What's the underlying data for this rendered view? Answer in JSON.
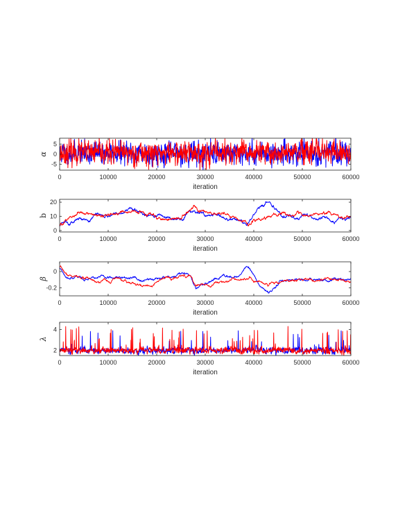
{
  "chart_data": [
    {
      "type": "line",
      "ylabel": "α",
      "xlabel": "iteration",
      "xlim": [
        0,
        60000
      ],
      "ylim": [
        -8,
        8
      ],
      "xticks": [
        0,
        10000,
        20000,
        30000,
        40000,
        50000,
        60000
      ],
      "yticks": [
        5,
        0,
        -5
      ],
      "ytick_labels": [
        "5",
        "0",
        "-5"
      ],
      "grid": false,
      "series": [
        {
          "color": "#0000ff",
          "mean": 0.5,
          "noise": 2.8,
          "persistence": 0.3,
          "x_end": 60000,
          "seed": 11
        },
        {
          "color": "#ff0000",
          "mean": 0.6,
          "noise": 2.9,
          "persistence": 0.3,
          "x_end": 60000,
          "seed": 23
        }
      ]
    },
    {
      "type": "line",
      "ylabel": "b",
      "xlabel": "iteration",
      "xlim": [
        0,
        60000
      ],
      "ylim": [
        -1,
        22
      ],
      "xticks": [
        0,
        10000,
        20000,
        30000,
        40000,
        50000,
        60000
      ],
      "yticks": [
        20,
        10,
        0
      ],
      "ytick_labels": [
        "20",
        "10",
        "0"
      ],
      "grid": false,
      "series": [
        {
          "color": "#0000ff",
          "mean": 10,
          "noise": 3,
          "persistence": 0.97,
          "x_end": 60000,
          "seed": 5,
          "anchors": [
            [
              0,
              3
            ],
            [
              1500,
              8
            ],
            [
              5000,
              10
            ],
            [
              12000,
              14
            ],
            [
              17000,
              14
            ],
            [
              20000,
              9
            ],
            [
              25000,
              8
            ],
            [
              27500,
              17
            ],
            [
              30000,
              12
            ],
            [
              35000,
              9
            ],
            [
              38500,
              3
            ],
            [
              40000,
              8
            ],
            [
              43000,
              19
            ],
            [
              46000,
              10
            ],
            [
              50000,
              9
            ],
            [
              55000,
              7
            ],
            [
              60000,
              8
            ]
          ]
        },
        {
          "color": "#ff0000",
          "mean": 10,
          "noise": 3,
          "persistence": 0.97,
          "x_end": 60000,
          "seed": 9,
          "anchors": [
            [
              0,
              3
            ],
            [
              1500,
              8
            ],
            [
              5000,
              10
            ],
            [
              12000,
              12
            ],
            [
              17000,
              14
            ],
            [
              20000,
              10
            ],
            [
              25000,
              8
            ],
            [
              27500,
              17
            ],
            [
              30000,
              12
            ],
            [
              35000,
              9
            ],
            [
              38500,
              5
            ],
            [
              40000,
              9
            ],
            [
              43000,
              13
            ],
            [
              46000,
              11
            ],
            [
              50000,
              11
            ],
            [
              55000,
              12
            ],
            [
              60000,
              10
            ]
          ]
        }
      ]
    },
    {
      "type": "line",
      "ylabel": "β",
      "xlabel": "iteration",
      "xlim": [
        0,
        60000
      ],
      "ylim": [
        -0.3,
        0.12
      ],
      "xticks": [
        0,
        10000,
        20000,
        30000,
        40000,
        50000,
        60000
      ],
      "yticks": [
        0,
        -0.2
      ],
      "ytick_labels": [
        "0",
        "-0.2"
      ],
      "grid": false,
      "series": [
        {
          "color": "#0000ff",
          "mean": -0.1,
          "noise": 0.04,
          "persistence": 0.97,
          "x_end": 60000,
          "seed": 3,
          "anchors": [
            [
              0,
              0.05
            ],
            [
              1500,
              -0.05
            ],
            [
              5000,
              -0.1
            ],
            [
              12000,
              -0.06
            ],
            [
              17000,
              -0.12
            ],
            [
              22000,
              -0.08
            ],
            [
              27000,
              -0.05
            ],
            [
              28000,
              -0.2
            ],
            [
              32000,
              -0.1
            ],
            [
              37000,
              -0.05
            ],
            [
              38500,
              0.05
            ],
            [
              40000,
              -0.08
            ],
            [
              43000,
              -0.25
            ],
            [
              46000,
              -0.1
            ],
            [
              50000,
              -0.12
            ],
            [
              55000,
              -0.08
            ],
            [
              60000,
              -0.1
            ]
          ]
        },
        {
          "color": "#ff0000",
          "mean": -0.1,
          "noise": 0.04,
          "persistence": 0.97,
          "x_end": 60000,
          "seed": 7,
          "anchors": [
            [
              0,
              0.05
            ],
            [
              1500,
              -0.05
            ],
            [
              5000,
              -0.1
            ],
            [
              12000,
              -0.1
            ],
            [
              17000,
              -0.2
            ],
            [
              22000,
              -0.1
            ],
            [
              27000,
              -0.08
            ],
            [
              28000,
              -0.18
            ],
            [
              32000,
              -0.12
            ],
            [
              37000,
              -0.06
            ],
            [
              38500,
              -0.05
            ],
            [
              40000,
              -0.1
            ],
            [
              43000,
              -0.15
            ],
            [
              46000,
              -0.1
            ],
            [
              50000,
              -0.1
            ],
            [
              55000,
              -0.12
            ],
            [
              60000,
              -0.15
            ]
          ]
        }
      ]
    },
    {
      "type": "line",
      "ylabel": "λ",
      "xlabel": "iteration",
      "xlim": [
        0,
        60000
      ],
      "ylim": [
        1.5,
        4.7
      ],
      "xticks": [
        0,
        10000,
        20000,
        30000,
        40000,
        50000,
        60000
      ],
      "yticks": [
        4,
        2
      ],
      "ytick_labels": [
        "4",
        "2"
      ],
      "grid": false,
      "series": [
        {
          "color": "#0000ff",
          "mean": 2.0,
          "noise": 0.15,
          "persistence": 0.5,
          "spike_prob": 0.04,
          "spike_max": 1.9,
          "x_end": 60000,
          "seed": 13
        },
        {
          "color": "#ff0000",
          "mean": 2.0,
          "noise": 0.15,
          "persistence": 0.5,
          "spike_prob": 0.05,
          "spike_max": 2.3,
          "x_end": 60000,
          "seed": 17
        }
      ]
    }
  ]
}
